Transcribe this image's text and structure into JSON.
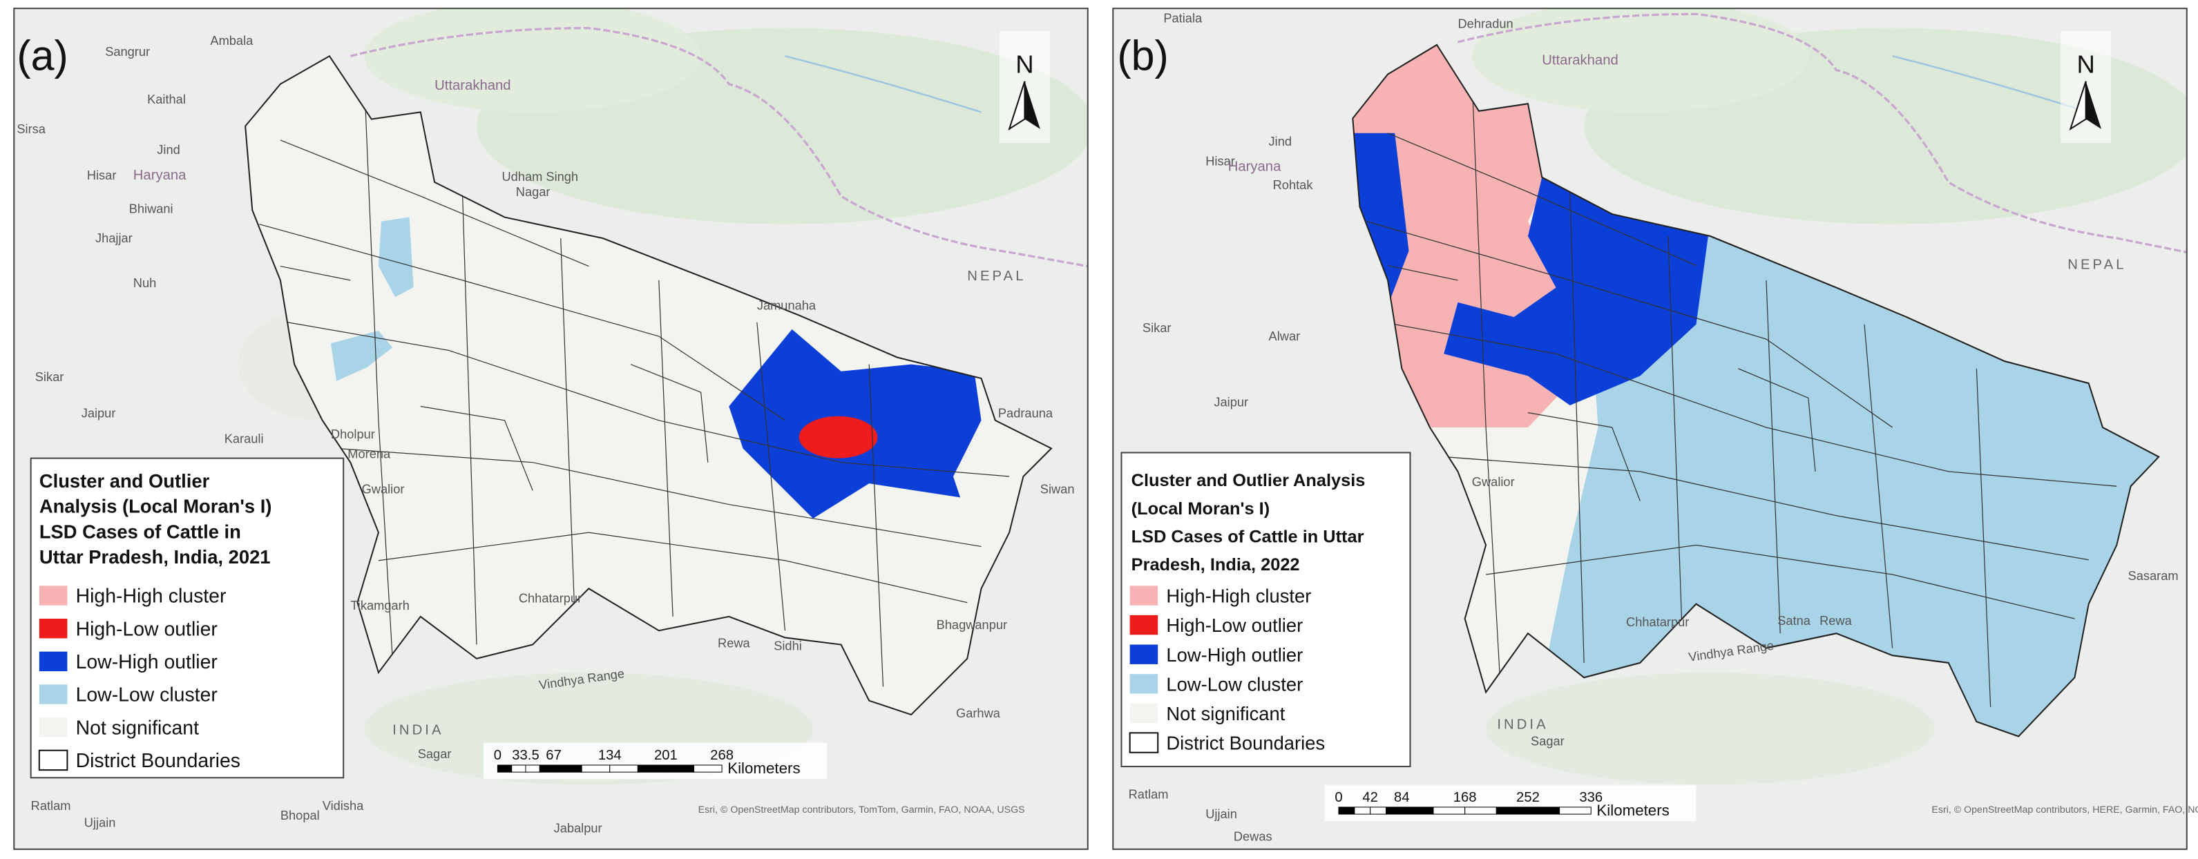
{
  "panels": [
    {
      "label": "(a)",
      "north": "N",
      "legend": {
        "title_lines": [
          "Cluster and Outlier",
          "Analysis (Local Moran's I)",
          "LSD Cases of Cattle in",
          "Uttar Pradesh, India, 2021"
        ],
        "items": [
          {
            "name": "High-High cluster",
            "color": "#f7b3b3"
          },
          {
            "name": "High-Low outlier",
            "color": "#ee1c1c"
          },
          {
            "name": "Low-High outlier",
            "color": "#0b3fd8"
          },
          {
            "name": "Low-Low cluster",
            "color": "#a9d4e8"
          },
          {
            "name": "Not significant",
            "color": "#f3f3ef"
          },
          {
            "name": "District Boundaries",
            "color": "#ffffff"
          }
        ]
      },
      "scale": {
        "ticks": [
          0,
          33.5,
          67,
          134,
          201,
          268
        ],
        "unit": "Kilometers"
      },
      "attribution": "Esri, © OpenStreetMap contributors, TomTom, Garmin, FAO, NOAA, USGS",
      "places": [
        "Sangrur",
        "Ambala",
        "Kaithal",
        "Sirsa",
        "Jind",
        "Hisar",
        "Haryana",
        "Bhiwani",
        "Jhajjar",
        "Nuh",
        "Sikar",
        "Jaipur",
        "Uttarakhand",
        "Udham Singh",
        "Nagar",
        "NEPAL",
        "Jamunaha",
        "Padrauna",
        "Siwan",
        "Dholpur",
        "Morena",
        "Gwalior",
        "Karauli",
        "Tikamgarh",
        "Chhatarpur",
        "Vindhya Range",
        "Rewa",
        "Sidhi",
        "Bhagwanpur",
        "Garhwa",
        "INDIA",
        "Sagar",
        "Vidisha",
        "Bhopal",
        "Ratlam",
        "Ujjain",
        "Jabalpur"
      ]
    },
    {
      "label": "(b)",
      "north": "N",
      "legend": {
        "title_lines": [
          "Cluster and Outlier Analysis",
          "(Local Moran's I)",
          "LSD Cases of Cattle in Uttar",
          "Pradesh, India, 2022"
        ],
        "items": [
          {
            "name": "High-High cluster",
            "color": "#f7b3b3"
          },
          {
            "name": "High-Low outlier",
            "color": "#ee1c1c"
          },
          {
            "name": "Low-High outlier",
            "color": "#0b3fd8"
          },
          {
            "name": "Low-Low cluster",
            "color": "#a9d4e8"
          },
          {
            "name": "Not significant",
            "color": "#f3f3ef"
          },
          {
            "name": "District Boundaries",
            "color": "#ffffff"
          }
        ]
      },
      "scale": {
        "ticks": [
          0,
          42,
          84,
          168,
          252,
          336
        ],
        "unit": "Kilometers"
      },
      "attribution": "Esri, © OpenStreetMap contributors, HERE, Garmin, FAO, NOAA, USGS",
      "places": [
        "Patiala",
        "Dehradun",
        "Uttarakhand",
        "Jind",
        "Hisar",
        "Haryana",
        "Rohtak",
        "Sikar",
        "Alwar",
        "Jaipur",
        "NEPAL",
        "Gwalior",
        "Chhatarpur",
        "Vindhya Range",
        "Satna",
        "Rewa",
        "INDIA",
        "Sagar",
        "Sasaram",
        "Ratlam",
        "Ujjain",
        "Dewas"
      ]
    }
  ]
}
